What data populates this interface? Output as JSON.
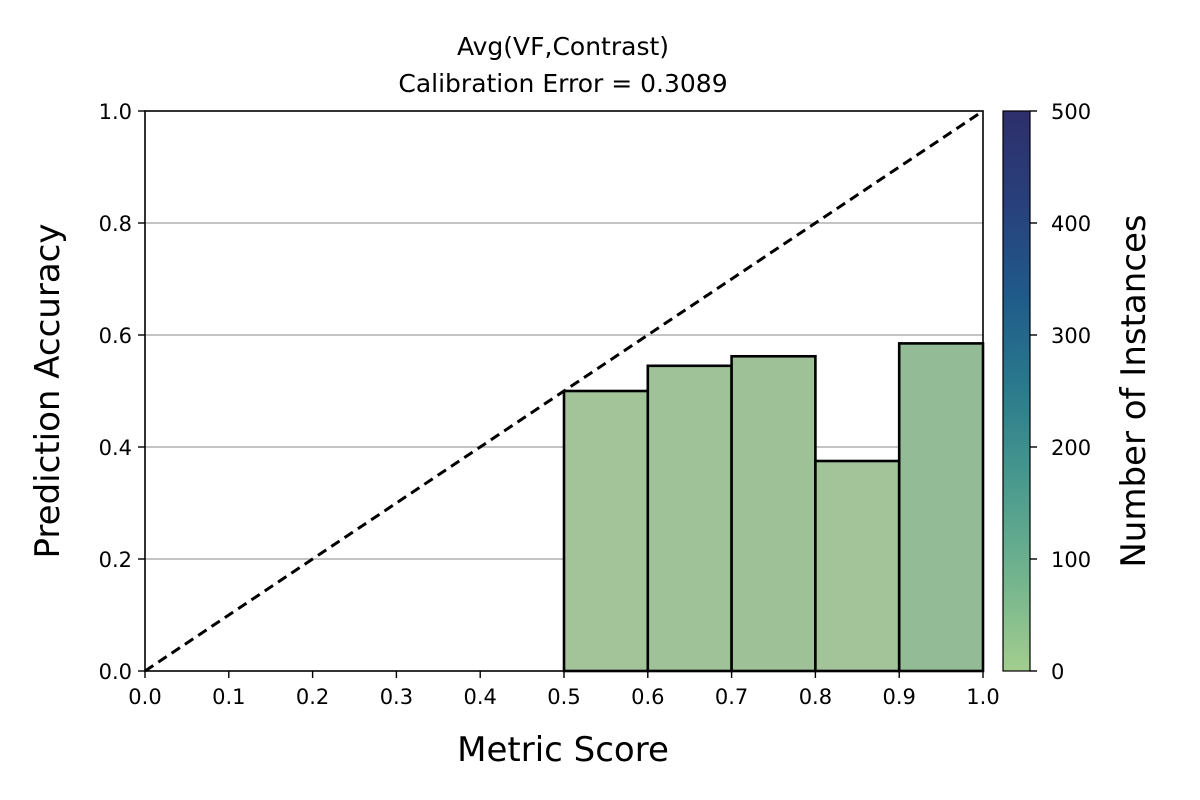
{
  "chart_data": {
    "type": "bar",
    "title": "Avg(VF,Contrast)",
    "subtitle": "Calibration Error = 0.3089",
    "xlabel": "Metric Score",
    "ylabel": "Prediction Accuracy",
    "xlim": [
      0.0,
      1.0
    ],
    "ylim": [
      0.0,
      1.0
    ],
    "x_ticks": [
      "0.0",
      "0.1",
      "0.2",
      "0.3",
      "0.4",
      "0.5",
      "0.6",
      "0.7",
      "0.8",
      "0.9",
      "1.0"
    ],
    "y_ticks": [
      "0.0",
      "0.2",
      "0.4",
      "0.6",
      "0.8",
      "1.0"
    ],
    "grid": "horizontal",
    "reference_line": {
      "style": "dashed",
      "from": [
        0,
        0
      ],
      "to": [
        1,
        1
      ],
      "color": "#000000"
    },
    "bins": [
      {
        "x0": 0.5,
        "x1": 0.6,
        "value": 0.5,
        "count": 30,
        "color": "#a3c499"
      },
      {
        "x0": 0.6,
        "x1": 0.7,
        "value": 0.545,
        "count": 35,
        "color": "#a0c298"
      },
      {
        "x0": 0.7,
        "x1": 0.8,
        "value": 0.562,
        "count": 40,
        "color": "#9ec197"
      },
      {
        "x0": 0.8,
        "x1": 0.9,
        "value": 0.375,
        "count": 30,
        "color": "#a3c499"
      },
      {
        "x0": 0.9,
        "x1": 1.0,
        "value": 0.585,
        "count": 60,
        "color": "#93bb96"
      }
    ],
    "colorbar": {
      "label": "Number of Instances",
      "range": [
        0,
        500
      ],
      "ticks": [
        "0",
        "100",
        "200",
        "300",
        "400",
        "500"
      ],
      "colors": [
        "#a3cd8e",
        "#72b48e",
        "#4a9a8e",
        "#2b7b8d",
        "#1f5b8a",
        "#28407c",
        "#2d2f6b"
      ]
    }
  }
}
